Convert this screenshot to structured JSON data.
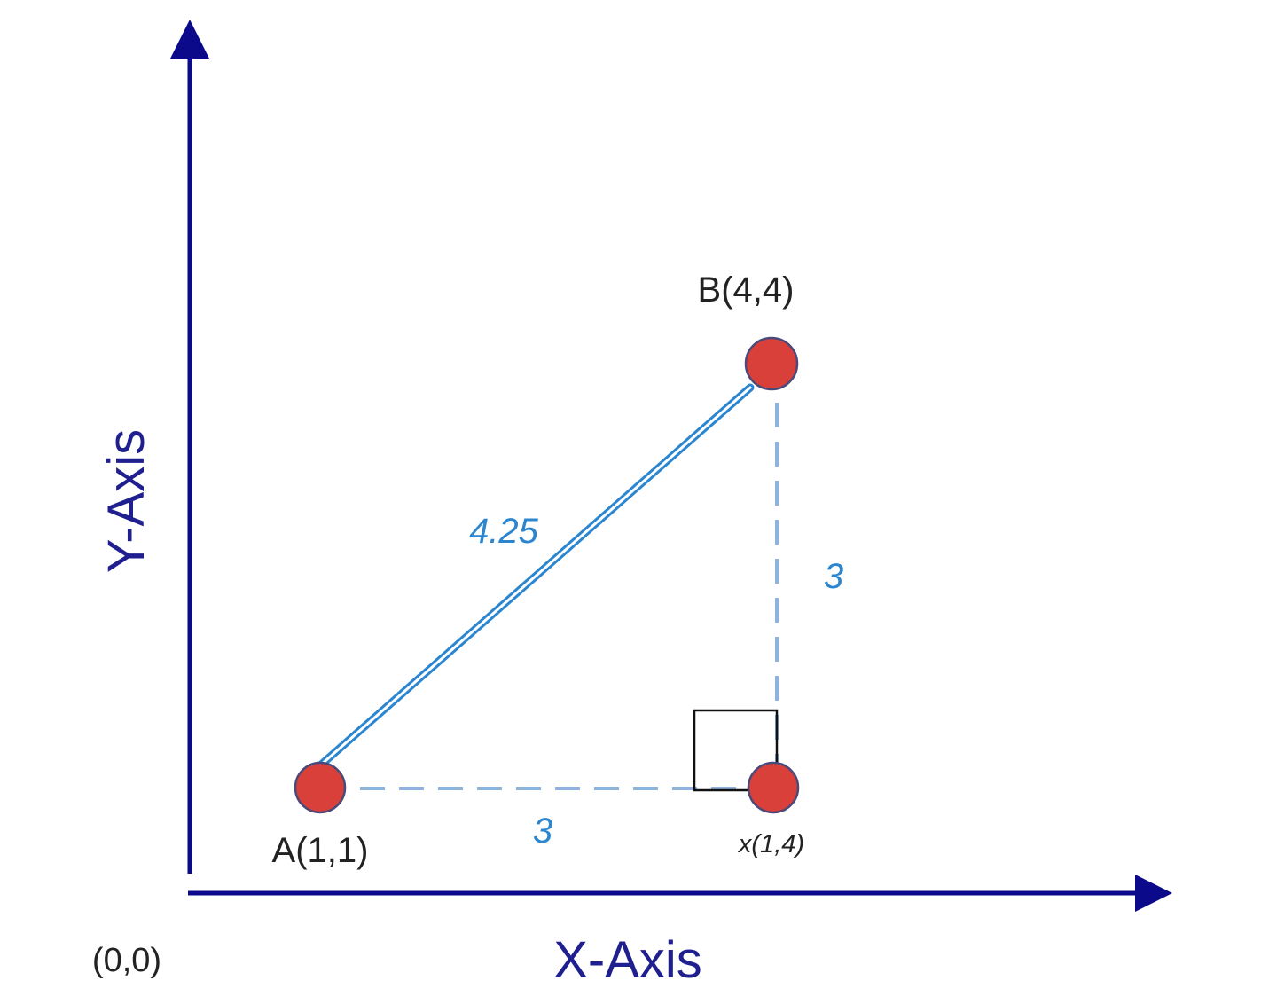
{
  "axes": {
    "x_label": "X-Axis",
    "y_label": "Y-Axis",
    "origin_label": "(0,0)",
    "color": "#0a0a8a"
  },
  "points": {
    "a": {
      "label": "A(1,1)"
    },
    "b": {
      "label": "B(4,4)"
    },
    "x": {
      "label": "x(1,4)"
    }
  },
  "measures": {
    "hypotenuse": "4.25",
    "horizontal": "3",
    "vertical": "3"
  },
  "colors": {
    "point_fill": "#d9403a",
    "point_stroke": "#4a4a7a",
    "segment": "#2b86cf",
    "dashed": "#8db4dc",
    "text": "#222222"
  }
}
